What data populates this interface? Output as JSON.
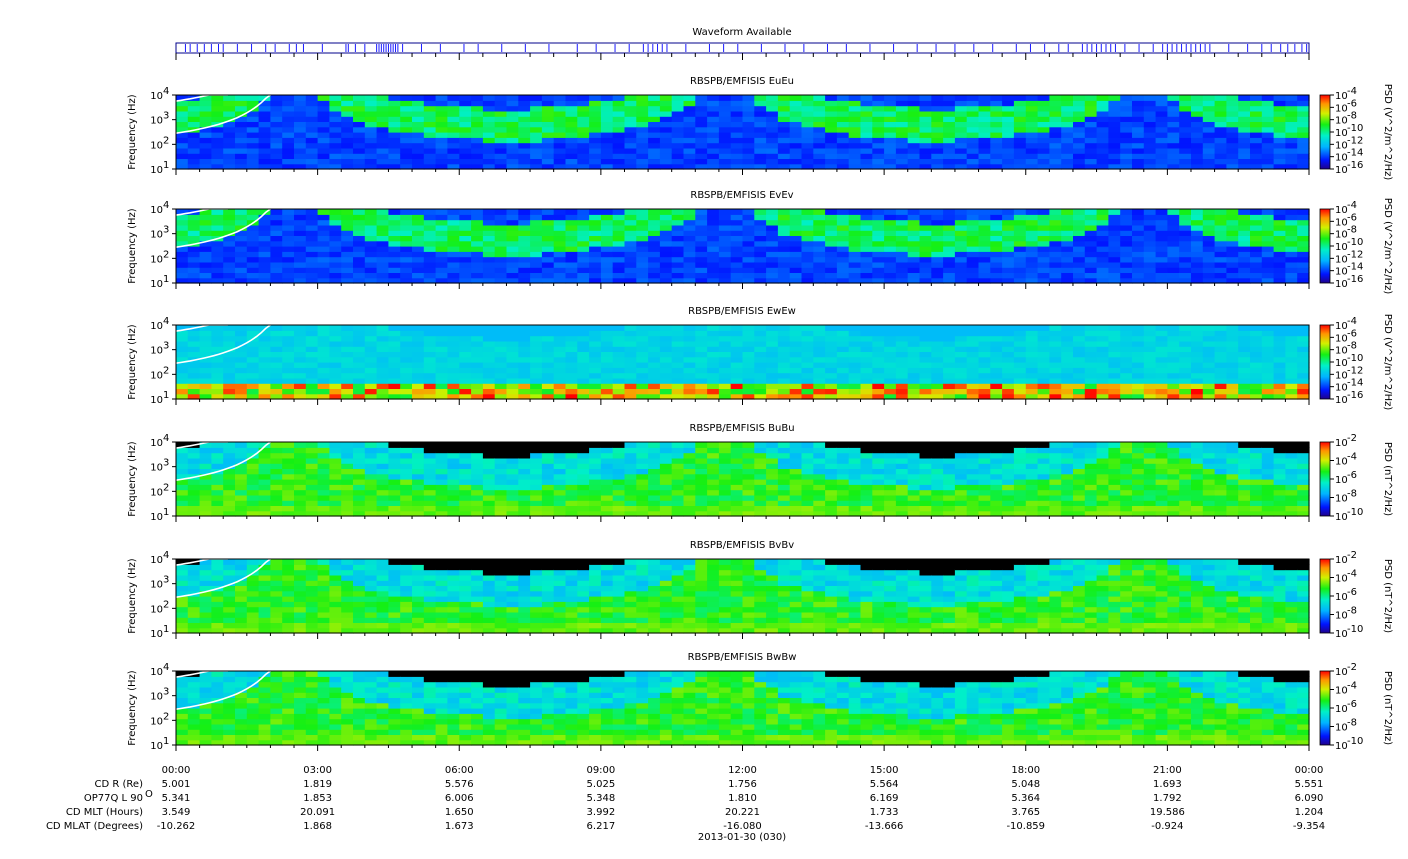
{
  "waveform": {
    "title": "Waveform Available",
    "marks_hours": [
      0.2,
      0.3,
      0.45,
      0.6,
      0.75,
      0.9,
      1.0,
      1.3,
      1.6,
      1.9,
      2.1,
      2.4,
      2.55,
      2.7,
      3.1,
      3.6,
      3.65,
      3.8,
      4.0,
      4.25,
      4.3,
      4.35,
      4.4,
      4.45,
      4.5,
      4.55,
      4.6,
      4.65,
      4.7,
      4.8,
      5.2,
      5.6,
      6.1,
      6.4,
      6.9,
      7.4,
      7.9,
      8.5,
      8.9,
      9.3,
      9.6,
      9.9,
      10.0,
      10.1,
      10.2,
      10.3,
      10.4,
      10.8,
      11.3,
      11.6,
      11.9,
      12.4,
      12.9,
      13.3,
      13.8,
      14.2,
      14.7,
      15.2,
      15.7,
      16.1,
      16.5,
      16.9,
      17.3,
      17.8,
      18.1,
      18.4,
      18.7,
      18.9,
      19.2,
      19.3,
      19.4,
      19.5,
      19.6,
      19.7,
      19.8,
      19.9,
      20.1,
      20.4,
      20.7,
      20.9,
      21.0,
      21.1,
      21.2,
      21.3,
      21.4,
      21.5,
      21.6,
      21.7,
      21.8,
      21.9,
      22.3,
      22.7,
      23.0,
      23.2,
      23.4,
      23.55,
      23.7,
      23.85,
      23.95
    ],
    "color": "#1a1aff"
  },
  "panels": [
    {
      "title": "RBSPB/EMFISIS  EuEu",
      "ylabel": "Frequency (Hz)",
      "yticks": [
        "10",
        "10",
        "10",
        "10"
      ],
      "yexp": [
        "1",
        "2",
        "3",
        "4"
      ],
      "cbar_label": "PSD (V^2/m^2/Hz)",
      "cbar_ticks": [
        "10",
        "10",
        "10",
        "10",
        "10",
        "10",
        "10"
      ],
      "cbar_exp": [
        "-4",
        "-6",
        "-8",
        "-10",
        "-12",
        "-14",
        "-16"
      ],
      "variant": "E"
    },
    {
      "title": "RBSPB/EMFISIS  EvEv",
      "ylabel": "Frequency (Hz)",
      "yticks": [
        "10",
        "10",
        "10",
        "10"
      ],
      "yexp": [
        "1",
        "2",
        "3",
        "4"
      ],
      "cbar_label": "PSD (V^2/m^2/Hz)",
      "cbar_ticks": [
        "10",
        "10",
        "10",
        "10",
        "10",
        "10",
        "10"
      ],
      "cbar_exp": [
        "-4",
        "-6",
        "-8",
        "-10",
        "-12",
        "-14",
        "-16"
      ],
      "variant": "E"
    },
    {
      "title": "RBSPB/EMFISIS  EwEw",
      "ylabel": "Frequency (Hz)",
      "yticks": [
        "10",
        "10",
        "10",
        "10"
      ],
      "yexp": [
        "1",
        "2",
        "3",
        "4"
      ],
      "cbar_label": "PSD (V^2/m^2/Hz)",
      "cbar_ticks": [
        "10",
        "10",
        "10",
        "10",
        "10",
        "10",
        "10"
      ],
      "cbar_exp": [
        "-4",
        "-6",
        "-8",
        "-10",
        "-12",
        "-14",
        "-16"
      ],
      "variant": "Ew"
    },
    {
      "title": "RBSPB/EMFISIS  BuBu",
      "ylabel": "Frequency (Hz)",
      "yticks": [
        "10",
        "10",
        "10",
        "10"
      ],
      "yexp": [
        "1",
        "2",
        "3",
        "4"
      ],
      "cbar_label": "PSD (nT^2/Hz)",
      "cbar_ticks": [
        "10",
        "10",
        "10",
        "10",
        "10"
      ],
      "cbar_exp": [
        "-2",
        "-4",
        "-6",
        "-8",
        "-10"
      ],
      "variant": "B"
    },
    {
      "title": "RBSPB/EMFISIS  BvBv",
      "ylabel": "Frequency (Hz)",
      "yticks": [
        "10",
        "10",
        "10",
        "10"
      ],
      "yexp": [
        "1",
        "2",
        "3",
        "4"
      ],
      "cbar_label": "PSD (nT^2/Hz)",
      "cbar_ticks": [
        "10",
        "10",
        "10",
        "10",
        "10"
      ],
      "cbar_exp": [
        "-2",
        "-4",
        "-6",
        "-8",
        "-10"
      ],
      "variant": "B"
    },
    {
      "title": "RBSPB/EMFISIS  BwBw",
      "ylabel": "Frequency (Hz)",
      "yticks": [
        "10",
        "10",
        "10",
        "10"
      ],
      "yexp": [
        "1",
        "2",
        "3",
        "4"
      ],
      "cbar_label": "PSD (nT^2/Hz)",
      "cbar_ticks": [
        "10",
        "10",
        "10",
        "10",
        "10"
      ],
      "cbar_exp": [
        "-2",
        "-4",
        "-6",
        "-8",
        "-10"
      ],
      "variant": "B"
    }
  ],
  "chart_data": {
    "type": "heatmap",
    "x": [
      "00:00",
      "03:00",
      "06:00",
      "09:00",
      "12:00",
      "15:00",
      "18:00",
      "21:00",
      "00:00"
    ],
    "xlim_hours": [
      0,
      24
    ],
    "ylim_hz": [
      10,
      10000
    ],
    "yscale": "log",
    "perigee_hours": [
      2.5,
      11.6,
      20.5
    ],
    "date_label": "2013-01-30 (030)",
    "ephemeris": [
      {
        "label": "CD R (Re)",
        "values": [
          "5.001",
          "1.819",
          "5.576",
          "5.025",
          "1.756",
          "5.564",
          "5.048",
          "1.693",
          "5.551"
        ]
      },
      {
        "label": "OP77Q L 90",
        "sup": "O",
        "values": [
          "5.341",
          "1.853",
          "6.006",
          "5.348",
          "1.810",
          "6.169",
          "5.364",
          "1.792",
          "6.090"
        ]
      },
      {
        "label": "CD MLT (Hours)",
        "values": [
          "3.549",
          "20.091",
          "1.650",
          "3.992",
          "20.221",
          "1.733",
          "3.765",
          "19.586",
          "1.204"
        ]
      },
      {
        "label": "CD MLAT (Degrees)",
        "values": [
          "-10.262",
          "1.868",
          "1.673",
          "6.217",
          "-16.080",
          "-13.666",
          "-10.859",
          "-0.924",
          "-9.354"
        ]
      }
    ]
  }
}
